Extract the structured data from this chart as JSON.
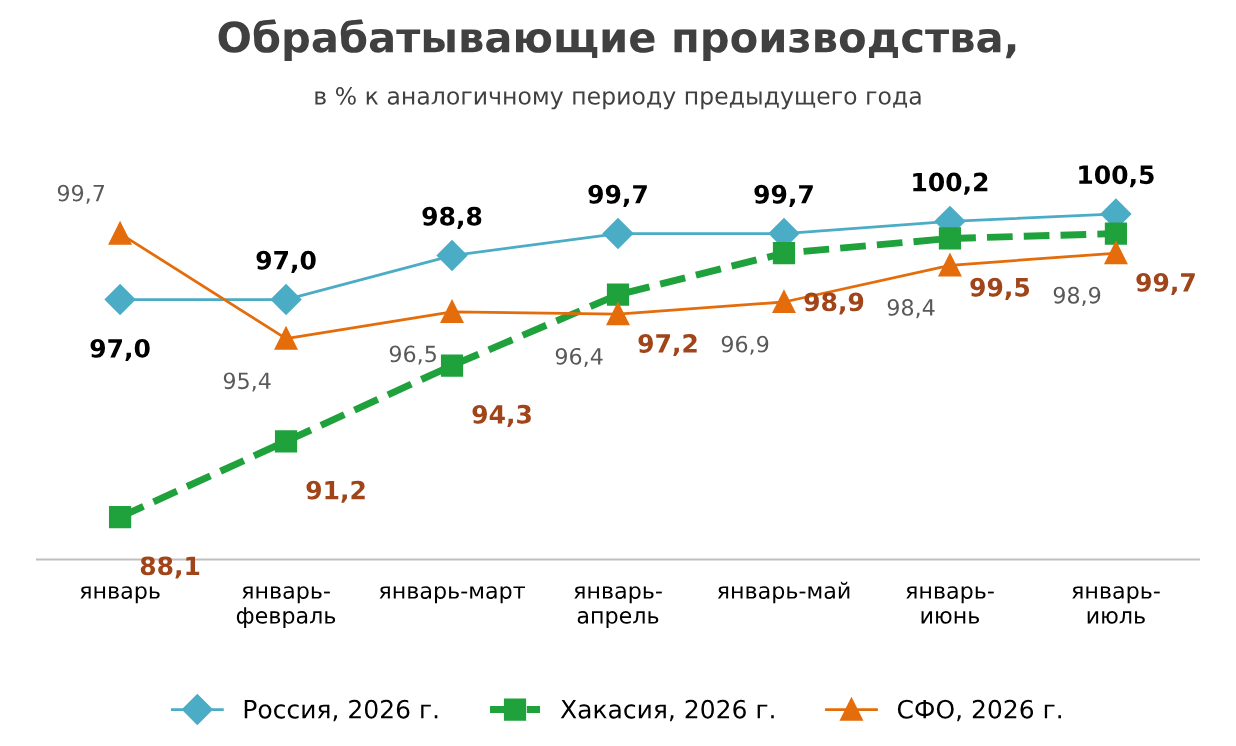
{
  "chart_data": {
    "type": "line",
    "title": "Обрабатывающие производства,",
    "subtitle": "в % к аналогичному периоду предыдущего года",
    "categories": [
      "январь",
      "январь-\nфевраль",
      "январь-март",
      "январь-\nапрель",
      "январь-май",
      "январь-\nиюнь",
      "январь-\nиюль"
    ],
    "series": [
      {
        "name": "Россия, 2026 г.",
        "color": "#4bacc6",
        "marker": "diamond",
        "line_style": "solid",
        "values": [
          97.0,
          97.0,
          98.8,
          99.7,
          99.7,
          100.2,
          100.5
        ],
        "value_labels": [
          "97,0",
          "97,0",
          "98,8",
          "99,7",
          "99,7",
          "100,2",
          "100,5"
        ]
      },
      {
        "name": "Хакасия, 2026 г.",
        "color": "#1fa13c",
        "marker": "square",
        "line_style": "dashed",
        "values": [
          88.1,
          91.2,
          94.3,
          97.2,
          98.9,
          99.5,
          99.7
        ],
        "value_labels": [
          "88,1",
          "91,2",
          "94,3",
          "97,2",
          "98,9",
          "99,5",
          "99,7"
        ]
      },
      {
        "name": "СФО, 2026 г.",
        "color": "#e46c0a",
        "marker": "triangle",
        "line_style": "solid",
        "values": [
          99.7,
          95.4,
          96.5,
          96.4,
          96.9,
          98.4,
          98.9
        ],
        "value_labels": [
          "99,7",
          "95,4",
          "96,5",
          "96,4",
          "96,9",
          "98,4",
          "98,9"
        ]
      }
    ],
    "legend": "bottom",
    "grid": false
  }
}
